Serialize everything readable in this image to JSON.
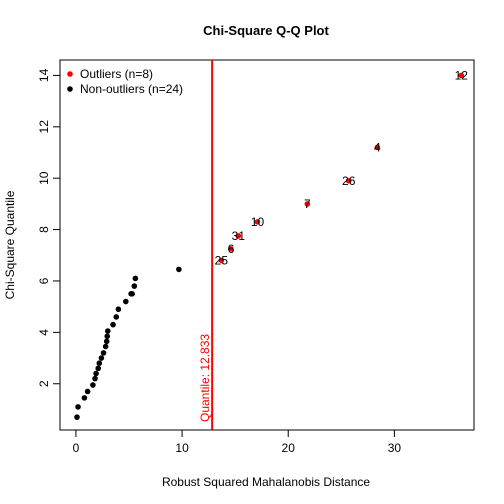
{
  "chart_data": {
    "type": "scatter",
    "title": "Chi-Square Q-Q Plot",
    "xlabel": "Robust Squared Mahalanobis Distance",
    "ylabel": "Chi-Square Quantile",
    "xlim": [
      -1.5,
      37.5
    ],
    "ylim": [
      0.2,
      14.6
    ],
    "x_ticks": [
      0,
      10,
      20,
      30
    ],
    "x_tick_labels": [
      "0",
      "10",
      "20",
      "30"
    ],
    "y_ticks": [
      2,
      4,
      6,
      8,
      10,
      12,
      14
    ],
    "y_tick_labels": [
      "2",
      "4",
      "6",
      "8",
      "10",
      "12",
      "14"
    ],
    "grid": false,
    "legend_position": "top-left",
    "series": [
      {
        "name": "Outliers (n=8)",
        "color": "#ff0000",
        "points": [
          {
            "x": 14.6,
            "y": 7.25,
            "label": "6"
          },
          {
            "x": 13.7,
            "y": 6.8,
            "label": "25"
          },
          {
            "x": 15.3,
            "y": 7.75,
            "label": "31"
          },
          {
            "x": 17.1,
            "y": 8.3,
            "label": "10"
          },
          {
            "x": 21.8,
            "y": 9.0,
            "label": "7"
          },
          {
            "x": 25.7,
            "y": 9.9,
            "label": "26"
          },
          {
            "x": 28.4,
            "y": 11.2,
            "label": "4"
          },
          {
            "x": 36.3,
            "y": 14.0,
            "label": "12"
          }
        ]
      },
      {
        "name": "Non-outliers (n=24)",
        "color": "#000000",
        "points": [
          {
            "x": 0.1,
            "y": 0.7
          },
          {
            "x": 0.2,
            "y": 1.1
          },
          {
            "x": 0.8,
            "y": 1.45
          },
          {
            "x": 1.1,
            "y": 1.7
          },
          {
            "x": 1.6,
            "y": 1.95
          },
          {
            "x": 1.8,
            "y": 2.2
          },
          {
            "x": 1.9,
            "y": 2.4
          },
          {
            "x": 2.1,
            "y": 2.6
          },
          {
            "x": 2.2,
            "y": 2.8
          },
          {
            "x": 2.4,
            "y": 3.0
          },
          {
            "x": 2.6,
            "y": 3.2
          },
          {
            "x": 2.8,
            "y": 3.45
          },
          {
            "x": 2.9,
            "y": 3.65
          },
          {
            "x": 2.95,
            "y": 3.85
          },
          {
            "x": 3.0,
            "y": 4.05
          },
          {
            "x": 3.5,
            "y": 4.3
          },
          {
            "x": 3.8,
            "y": 4.6
          },
          {
            "x": 4.0,
            "y": 4.9
          },
          {
            "x": 4.7,
            "y": 5.2
          },
          {
            "x": 5.2,
            "y": 5.5
          },
          {
            "x": 5.5,
            "y": 5.8
          },
          {
            "x": 5.6,
            "y": 6.1
          },
          {
            "x": 9.7,
            "y": 6.45
          },
          {
            "x": 5.3,
            "y": 5.5
          }
        ]
      }
    ],
    "reference_line": {
      "x": 12.833,
      "color": "#ff0000",
      "label": "Quantile: 12.833"
    }
  }
}
